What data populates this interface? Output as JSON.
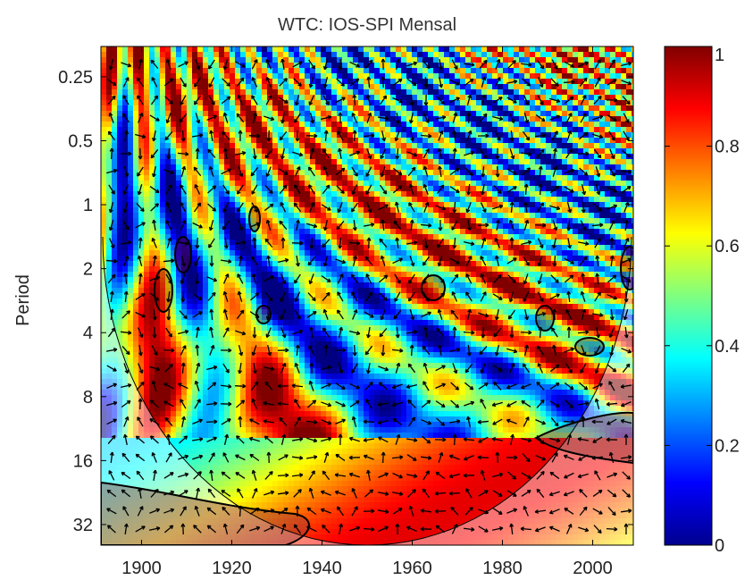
{
  "chart_data": {
    "type": "heatmap",
    "title": "WTC: IOS-SPI Mensal",
    "xlabel": "",
    "ylabel": "Period",
    "x_ticks": [
      "1900",
      "1920",
      "1940",
      "1960",
      "1980",
      "2000"
    ],
    "x_tick_values": [
      1900,
      1920,
      1940,
      1960,
      1980,
      2000
    ],
    "xlim": [
      1891,
      2009
    ],
    "y_ticks": [
      "0.25",
      "0.5",
      "1",
      "2",
      "4",
      "8",
      "16",
      "32"
    ],
    "y_tick_values": [
      0.25,
      0.5,
      1,
      2,
      4,
      8,
      16,
      32
    ],
    "ylim": [
      0.18,
      40
    ],
    "y_scale": "log2",
    "y_reversed": true,
    "colorbar": {
      "ticks": [
        "0",
        "0.2",
        "0.4",
        "0.6",
        "0.8",
        "1"
      ],
      "tick_values": [
        0,
        0.2,
        0.4,
        0.6,
        0.8,
        1
      ],
      "range": [
        0,
        1
      ],
      "colormap": "jet"
    },
    "cone_of_influence": true,
    "phase_arrows": true,
    "significance_contours": true
  }
}
